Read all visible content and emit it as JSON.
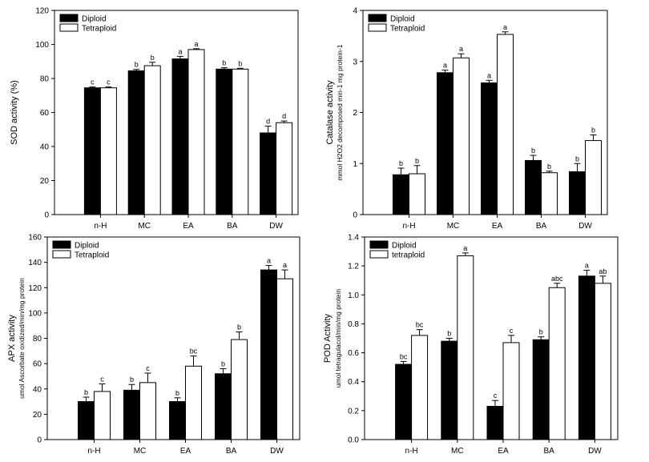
{
  "chart_data": [
    {
      "type": "bar",
      "panel": "sod",
      "categories": [
        "n-H",
        "MC",
        "EA",
        "BA",
        "DW"
      ],
      "ylabel": "SOD activity (%)",
      "ylabel_sub": "",
      "ylim": [
        0,
        120
      ],
      "yticks": [
        "0",
        "20",
        "40",
        "60",
        "80",
        "100",
        "120"
      ],
      "series": [
        {
          "name": "Diploid",
          "color": "#000000",
          "values": [
            74.5,
            84.5,
            91.5,
            85.5,
            48
          ],
          "errors": [
            0.5,
            0.8,
            1.5,
            0.8,
            4
          ],
          "letters": [
            "c",
            "b",
            "a",
            "b",
            "d"
          ]
        },
        {
          "name": "Tetraploid",
          "color": "#ffffff",
          "values": [
            74.5,
            87.5,
            97,
            85.5,
            54
          ],
          "errors": [
            0.5,
            2,
            0.5,
            0.5,
            1
          ],
          "letters": [
            "c",
            "b",
            "a",
            "b",
            "d"
          ]
        }
      ],
      "legend_position": "top-left"
    },
    {
      "type": "bar",
      "panel": "catalase",
      "categories": [
        "n-H",
        "MC",
        "EA",
        "BA",
        "DW"
      ],
      "ylabel": "Catalase activity",
      "ylabel_sub": "mmol H2O2 decomposed min-1 mg protein-1",
      "ylim": [
        0,
        4
      ],
      "yticks": [
        "0",
        "1",
        "2",
        "3",
        "4"
      ],
      "series": [
        {
          "name": "Diploid",
          "color": "#000000",
          "values": [
            0.78,
            2.78,
            2.58,
            1.06,
            0.84
          ],
          "errors": [
            0.13,
            0.05,
            0.05,
            0.1,
            0.16
          ],
          "letters": [
            "b",
            "a",
            "a",
            "b",
            "b"
          ]
        },
        {
          "name": "Tetraploid",
          "color": "#ffffff",
          "values": [
            0.8,
            3.07,
            3.53,
            0.82,
            1.45
          ],
          "errors": [
            0.16,
            0.08,
            0.05,
            0.03,
            0.11
          ],
          "letters": [
            "b",
            "a",
            "a",
            "b",
            "b"
          ]
        }
      ],
      "legend_position": "top-left"
    },
    {
      "type": "bar",
      "panel": "apx",
      "categories": [
        "n-H",
        "MC",
        "EA",
        "BA",
        "DW"
      ],
      "ylabel": "APX activity",
      "ylabel_sub": "umol Ascorbate oxidized/min/mg protein",
      "ylim": [
        0,
        160
      ],
      "yticks": [
        "0",
        "20",
        "40",
        "60",
        "80",
        "100",
        "120",
        "140",
        "160"
      ],
      "series": [
        {
          "name": "Diploid",
          "color": "#000000",
          "values": [
            30,
            39,
            30,
            52,
            134
          ],
          "errors": [
            3.5,
            4.5,
            3,
            4,
            3.5
          ],
          "letters": [
            "b",
            "b",
            "b",
            "b",
            "a"
          ]
        },
        {
          "name": "Tetraploid",
          "color": "#ffffff",
          "values": [
            38,
            45,
            58,
            79,
            127
          ],
          "errors": [
            6,
            7.5,
            8,
            6,
            7
          ],
          "letters": [
            "c",
            "c",
            "bc",
            "b",
            "a"
          ]
        }
      ],
      "legend_position": "top-left"
    },
    {
      "type": "bar",
      "panel": "pod",
      "categories": [
        "n-H",
        "MC",
        "EA",
        "BA",
        "DW"
      ],
      "ylabel": "POD Activity",
      "ylabel_sub": "umol tetragulacol/min/mg protein",
      "ylim": [
        0,
        1.4
      ],
      "yticks": [
        "0.0",
        "0.2",
        "0.4",
        "0.6",
        "0.8",
        "1.0",
        "1.2",
        "1.4"
      ],
      "series": [
        {
          "name": "Diploid",
          "color": "#000000",
          "values": [
            0.52,
            0.68,
            0.23,
            0.69,
            1.13
          ],
          "errors": [
            0.02,
            0.02,
            0.04,
            0.02,
            0.04
          ],
          "letters": [
            "bc",
            "b",
            "c",
            "b",
            "a"
          ]
        },
        {
          "name": "tetraploid",
          "color": "#ffffff",
          "values": [
            0.72,
            1.27,
            0.67,
            1.05,
            1.08
          ],
          "errors": [
            0.04,
            0.02,
            0.05,
            0.03,
            0.05
          ],
          "letters": [
            "bc",
            "a",
            "c",
            "abc",
            "ab"
          ]
        }
      ],
      "legend_position": "top-left"
    }
  ]
}
